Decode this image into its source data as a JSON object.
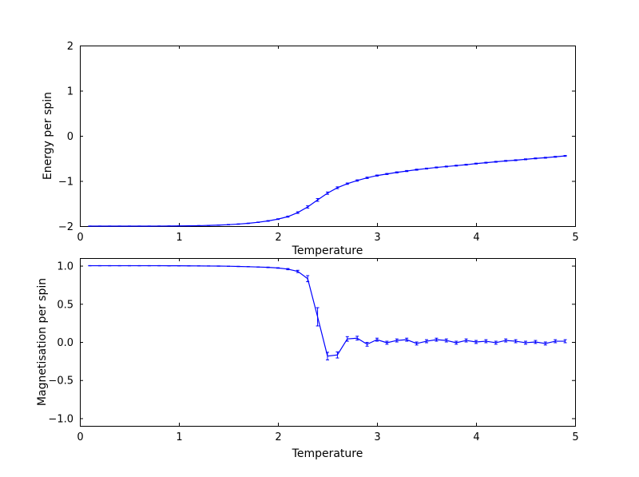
{
  "figure": {
    "background": "#ffffff",
    "axis_color": "#000000",
    "line_color": "#0000ff"
  },
  "chart_data": [
    {
      "type": "line",
      "title": "",
      "xlabel": "Temperature",
      "ylabel": "Energy per spin",
      "xlim": [
        0,
        5
      ],
      "ylim": [
        -2,
        2
      ],
      "grid": false,
      "legend": "none",
      "xticks": [
        0,
        1,
        2,
        3,
        4,
        5
      ],
      "xtick_labels": [
        "0",
        "1",
        "2",
        "3",
        "4",
        "5"
      ],
      "yticks": [
        -2,
        -1,
        0,
        1,
        2
      ],
      "ytick_labels": [
        "−2",
        "−1",
        "0",
        "1",
        "2"
      ],
      "x": [
        0.1,
        0.2,
        0.3,
        0.4,
        0.5,
        0.6,
        0.7,
        0.8,
        0.9,
        1.0,
        1.1,
        1.2,
        1.3,
        1.4,
        1.5,
        1.6,
        1.7,
        1.8,
        1.9,
        2.0,
        2.1,
        2.2,
        2.3,
        2.4,
        2.5,
        2.6,
        2.7,
        2.8,
        2.9,
        3.0,
        3.1,
        3.2,
        3.3,
        3.4,
        3.5,
        3.6,
        3.7,
        3.8,
        3.9,
        4.0,
        4.1,
        4.2,
        4.3,
        4.4,
        4.5,
        4.6,
        4.7,
        4.8,
        4.9
      ],
      "y": [
        -2.0,
        -2.0,
        -2.0,
        -2.0,
        -2.0,
        -2.0,
        -2.0,
        -1.999,
        -1.998,
        -1.996,
        -1.993,
        -1.99,
        -1.985,
        -1.978,
        -1.968,
        -1.955,
        -1.938,
        -1.915,
        -1.885,
        -1.845,
        -1.79,
        -1.7,
        -1.575,
        -1.42,
        -1.27,
        -1.15,
        -1.06,
        -0.99,
        -0.93,
        -0.88,
        -0.845,
        -0.81,
        -0.78,
        -0.75,
        -0.725,
        -0.7,
        -0.68,
        -0.66,
        -0.64,
        -0.615,
        -0.595,
        -0.575,
        -0.555,
        -0.54,
        -0.52,
        -0.5,
        -0.485,
        -0.465,
        -0.445
      ],
      "yerr": [
        0.003,
        0.003,
        0.003,
        0.003,
        0.003,
        0.003,
        0.003,
        0.003,
        0.003,
        0.003,
        0.003,
        0.003,
        0.003,
        0.003,
        0.005,
        0.005,
        0.005,
        0.005,
        0.008,
        0.008,
        0.012,
        0.018,
        0.025,
        0.03,
        0.025,
        0.02,
        0.015,
        0.015,
        0.015,
        0.012,
        0.012,
        0.012,
        0.012,
        0.012,
        0.01,
        0.01,
        0.01,
        0.01,
        0.01,
        0.01,
        0.01,
        0.01,
        0.01,
        0.01,
        0.01,
        0.01,
        0.01,
        0.01,
        0.01
      ]
    },
    {
      "type": "line",
      "title": "",
      "xlabel": "Temperature",
      "ylabel": "Magnetisation per spin",
      "xlim": [
        0,
        5
      ],
      "ylim": [
        -1.1,
        1.1
      ],
      "grid": false,
      "legend": "none",
      "xticks": [
        0,
        1,
        2,
        3,
        4,
        5
      ],
      "xtick_labels": [
        "0",
        "1",
        "2",
        "3",
        "4",
        "5"
      ],
      "yticks": [
        -1.0,
        -0.5,
        0.0,
        0.5,
        1.0
      ],
      "ytick_labels": [
        "−1.0",
        "−0.5",
        "0.0",
        "0.5",
        "1.0"
      ],
      "x": [
        0.1,
        0.2,
        0.3,
        0.4,
        0.5,
        0.6,
        0.7,
        0.8,
        0.9,
        1.0,
        1.1,
        1.2,
        1.3,
        1.4,
        1.5,
        1.6,
        1.7,
        1.8,
        1.9,
        2.0,
        2.1,
        2.2,
        2.3,
        2.4,
        2.5,
        2.6,
        2.7,
        2.8,
        2.9,
        3.0,
        3.1,
        3.2,
        3.3,
        3.4,
        3.5,
        3.6,
        3.7,
        3.8,
        3.9,
        4.0,
        4.1,
        4.2,
        4.3,
        4.4,
        4.5,
        4.6,
        4.7,
        4.8,
        4.9
      ],
      "y": [
        1.0,
        1.0,
        1.0,
        1.0,
        1.0,
        1.0,
        1.0,
        1.0,
        0.999,
        0.999,
        0.998,
        0.997,
        0.996,
        0.995,
        0.993,
        0.99,
        0.987,
        0.983,
        0.978,
        0.97,
        0.955,
        0.925,
        0.83,
        0.33,
        -0.185,
        -0.17,
        0.04,
        0.05,
        -0.03,
        0.03,
        -0.01,
        0.02,
        0.03,
        -0.02,
        0.01,
        0.03,
        0.02,
        -0.01,
        0.02,
        0.0,
        0.01,
        -0.01,
        0.02,
        0.01,
        -0.01,
        0.0,
        -0.02,
        0.01,
        0.01
      ],
      "yerr": [
        0.002,
        0.002,
        0.002,
        0.002,
        0.002,
        0.002,
        0.002,
        0.002,
        0.002,
        0.002,
        0.002,
        0.002,
        0.002,
        0.002,
        0.002,
        0.002,
        0.002,
        0.002,
        0.004,
        0.004,
        0.008,
        0.015,
        0.04,
        0.12,
        0.05,
        0.04,
        0.03,
        0.025,
        0.025,
        0.02,
        0.02,
        0.02,
        0.02,
        0.02,
        0.02,
        0.02,
        0.02,
        0.02,
        0.02,
        0.02,
        0.02,
        0.02,
        0.02,
        0.02,
        0.02,
        0.02,
        0.02,
        0.02,
        0.02
      ]
    }
  ]
}
